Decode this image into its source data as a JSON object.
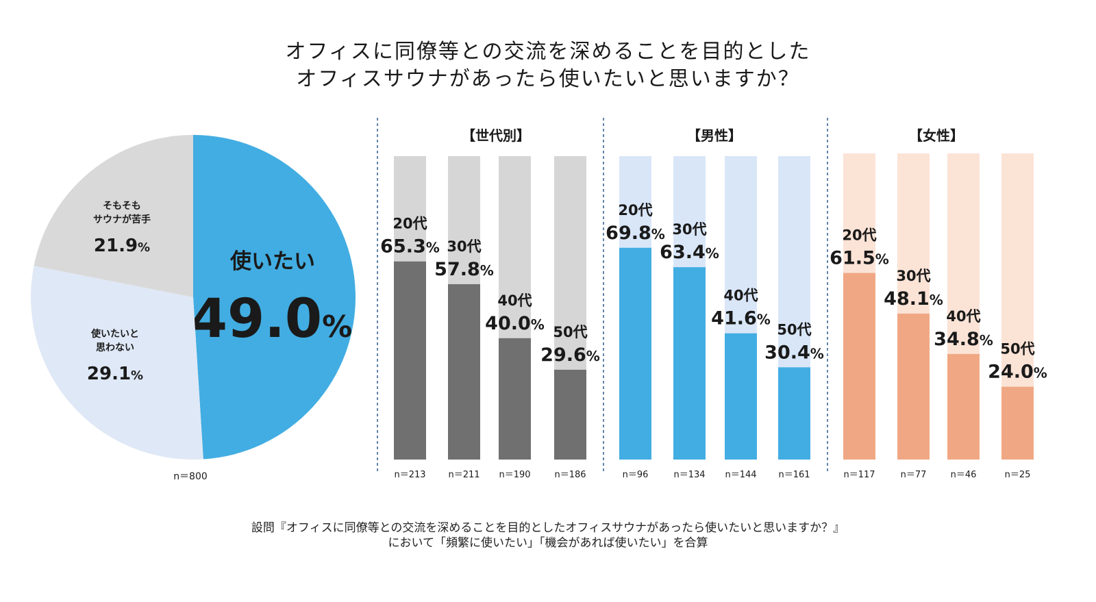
{
  "title": {
    "line1": "オフィスに同僚等との交流を深めることを目的とした",
    "line2": "オフィスサウナがあったら使いたいと思いますか？"
  },
  "footnote": {
    "line1": "設問『オフィスに同僚等との交流を深めることを目的としたオフィスサウナがあったら使いたいと思いますか？』",
    "line2": "において「頻繁に使いたい」「機会があれば使いたい」を合算"
  },
  "colors": {
    "pie_main": "#42ade2",
    "pie_light": "#dfe8f6",
    "pie_gray": "#d9d9d9",
    "gen_fill": "#707070",
    "gen_bg": "#d6d6d6",
    "male_fill": "#42ade2",
    "male_bg": "#d9e6f8",
    "female_fill": "#f0a884",
    "female_bg": "#fbe3d6",
    "divider": "#2e5a8c"
  },
  "chart_data": [
    {
      "type": "pie",
      "slices": [
        {
          "label": "使いたい",
          "value": 49.0,
          "display": "49.0",
          "unit": "%"
        },
        {
          "label": "使いたいと\n思わない",
          "value": 29.1,
          "display": "29.1",
          "unit": "%"
        },
        {
          "label": "そもそも\nサウナが苦手",
          "value": 21.9,
          "display": "21.9",
          "unit": "%"
        }
      ],
      "n": "n＝800"
    },
    {
      "type": "bar",
      "group": "【世代別】",
      "categories": [
        "20代",
        "30代",
        "40代",
        "50代"
      ],
      "values": [
        65.3,
        57.8,
        40.0,
        29.6
      ],
      "display": [
        "65.3",
        "57.8",
        "40.0",
        "29.6"
      ],
      "unit": "%",
      "n": [
        "n＝213",
        "n＝211",
        "n＝190",
        "n＝186"
      ],
      "ylim": [
        0,
        100
      ]
    },
    {
      "type": "bar",
      "group": "【男性】",
      "categories": [
        "20代",
        "30代",
        "40代",
        "50代"
      ],
      "values": [
        69.8,
        63.4,
        41.6,
        30.4
      ],
      "display": [
        "69.8",
        "63.4",
        "41.6",
        "30.4"
      ],
      "unit": "%",
      "n": [
        "n＝96",
        "n＝134",
        "n＝144",
        "n＝161"
      ],
      "ylim": [
        0,
        100
      ]
    },
    {
      "type": "bar",
      "group": "【女性】",
      "categories": [
        "20代",
        "30代",
        "40代",
        "50代"
      ],
      "values": [
        61.5,
        48.1,
        34.8,
        24.0
      ],
      "display": [
        "61.5",
        "48.1",
        "34.8",
        "24.0"
      ],
      "unit": "%",
      "n": [
        "n＝117",
        "n＝77",
        "n＝46",
        "n＝25"
      ],
      "ylim": [
        0,
        100
      ]
    }
  ]
}
